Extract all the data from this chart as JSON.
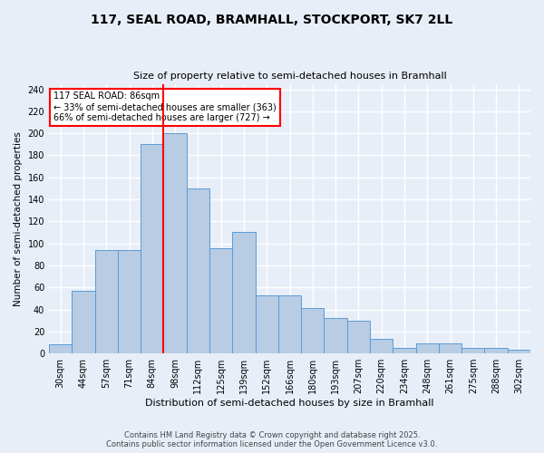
{
  "title": "117, SEAL ROAD, BRAMHALL, STOCKPORT, SK7 2LL",
  "subtitle": "Size of property relative to semi-detached houses in Bramhall",
  "xlabel": "Distribution of semi-detached houses by size in Bramhall",
  "ylabel": "Number of semi-detached properties",
  "bar_values": [
    8,
    57,
    94,
    94,
    190,
    200,
    150,
    96,
    110,
    53,
    53,
    41,
    32,
    30,
    13,
    5,
    9,
    9,
    5,
    5,
    3
  ],
  "bin_labels": [
    "30sqm",
    "44sqm",
    "57sqm",
    "71sqm",
    "84sqm",
    "98sqm",
    "112sqm",
    "125sqm",
    "139sqm",
    "152sqm",
    "166sqm",
    "180sqm",
    "193sqm",
    "207sqm",
    "220sqm",
    "234sqm",
    "248sqm",
    "261sqm",
    "275sqm",
    "288sqm",
    "302sqm"
  ],
  "bar_color": "#b8cce4",
  "bar_edge_color": "#5b9bd5",
  "annotation_title": "117 SEAL ROAD: 86sqm",
  "annotation_line1": "← 33% of semi-detached houses are smaller (363)",
  "annotation_line2": "66% of semi-detached houses are larger (727) →",
  "annotation_box_color": "white",
  "annotation_box_edge_color": "red",
  "vline_color": "red",
  "ylim": [
    0,
    245
  ],
  "yticks": [
    0,
    20,
    40,
    60,
    80,
    100,
    120,
    140,
    160,
    180,
    200,
    220,
    240
  ],
  "background_color": "#e8eef8",
  "grid_color": "white",
  "footer_line1": "Contains HM Land Registry data © Crown copyright and database right 2025.",
  "footer_line2": "Contains public sector information licensed under the Open Government Licence v3.0."
}
